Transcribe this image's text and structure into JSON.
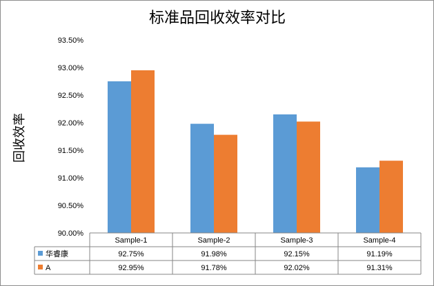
{
  "chart_data": {
    "type": "bar",
    "title": "标准品回收效率对比",
    "ylabel": "回收效率",
    "xlabel": "",
    "categories": [
      "Sample-1",
      "Sample-2",
      "Sample-3",
      "Sample-4"
    ],
    "ylim": [
      90.0,
      93.5
    ],
    "yticks": [
      "90.00%",
      "90.50%",
      "91.00%",
      "91.50%",
      "92.00%",
      "92.50%",
      "93.00%",
      "93.50%"
    ],
    "series": [
      {
        "name": "华睿康",
        "values": [
          92.75,
          91.98,
          92.15,
          91.19
        ],
        "labels": [
          "92.75%",
          "91.98%",
          "92.15%",
          "91.19%"
        ],
        "color": "#5b9bd5"
      },
      {
        "name": "A",
        "values": [
          92.95,
          91.78,
          92.02,
          91.31
        ],
        "labels": [
          "92.95%",
          "91.78%",
          "92.02%",
          "91.31%"
        ],
        "color": "#ed7d31"
      }
    ],
    "grid": false,
    "legend": "data-table",
    "data_table": true
  }
}
